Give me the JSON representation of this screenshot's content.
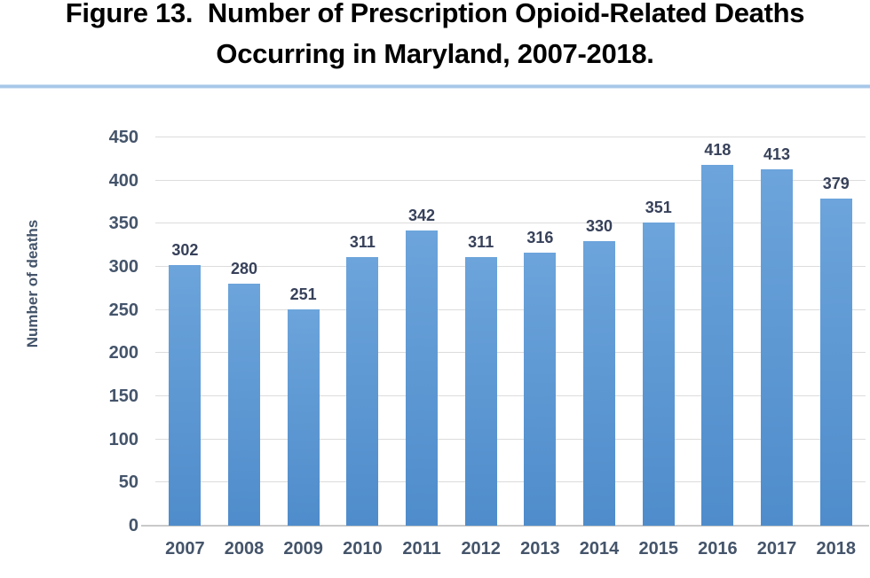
{
  "figure": {
    "title_line1": "Figure 13.  Number of Prescription Opioid-Related Deaths",
    "title_line2": "Occurring in Maryland, 2007-2018."
  },
  "chart_data": {
    "type": "bar",
    "title": "Figure 13. Number of Prescription Opioid-Related Deaths Occurring in Maryland, 2007-2018.",
    "categories": [
      "2007",
      "2008",
      "2009",
      "2010",
      "2011",
      "2012",
      "2013",
      "2014",
      "2015",
      "2016",
      "2017",
      "2018"
    ],
    "values": [
      302,
      280,
      251,
      311,
      342,
      311,
      316,
      330,
      351,
      418,
      413,
      379
    ],
    "xlabel": "",
    "ylabel": "Number of deaths",
    "ylim": [
      0,
      450
    ],
    "ytick_step": 50,
    "yticks": [
      0,
      50,
      100,
      150,
      200,
      250,
      300,
      350,
      400,
      450
    ],
    "grid": true,
    "legend": false,
    "data_labels": true,
    "colors": {
      "bar": "#5B9BD5",
      "bar_gradient_top": "#6CA4DB",
      "bar_gradient_bottom": "#4F8CCB",
      "data_label": "#37415A",
      "tick_label": "#44546A",
      "gridline": "#DCDCDC",
      "axis_line": "#C9C9C9",
      "divider": "#A8C7E8",
      "title": "#000000"
    }
  }
}
